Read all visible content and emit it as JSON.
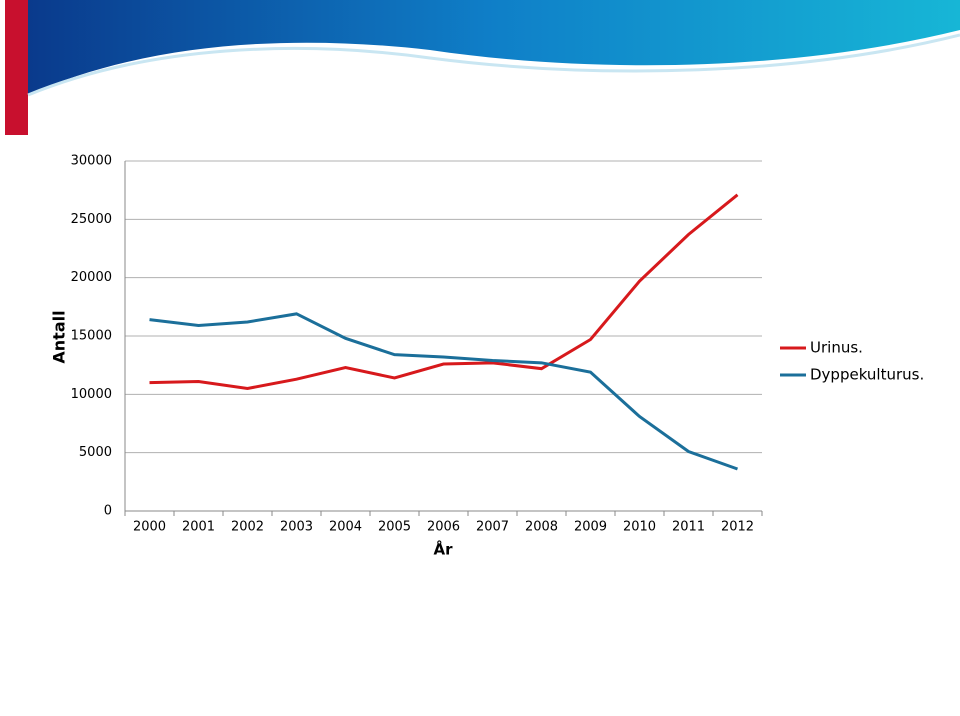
{
  "chart_data": {
    "type": "line",
    "y_label": "Antall",
    "x_label": "År",
    "categories": [
      "2000",
      "2001",
      "2002",
      "2003",
      "2004",
      "2005",
      "2006",
      "2007",
      "2008",
      "2009",
      "2010",
      "2011",
      "2012"
    ],
    "series": [
      {
        "name": "Urinus.",
        "color": "#d7191c",
        "values": [
          11000,
          11100,
          10500,
          11300,
          12300,
          11400,
          12600,
          12700,
          12200,
          14700,
          19700,
          23700,
          27100
        ]
      },
      {
        "name": "Dyppekulturus.",
        "color": "#1b6f9a",
        "values": [
          16400,
          15900,
          16200,
          16900,
          14800,
          13400,
          13200,
          12900,
          12700,
          11900,
          8100,
          5100,
          3600
        ]
      }
    ],
    "ylim": [
      0,
      30000
    ],
    "yticks": [
      0,
      5000,
      10000,
      15000,
      20000,
      25000,
      30000
    ],
    "grid": true,
    "legend": "right"
  }
}
